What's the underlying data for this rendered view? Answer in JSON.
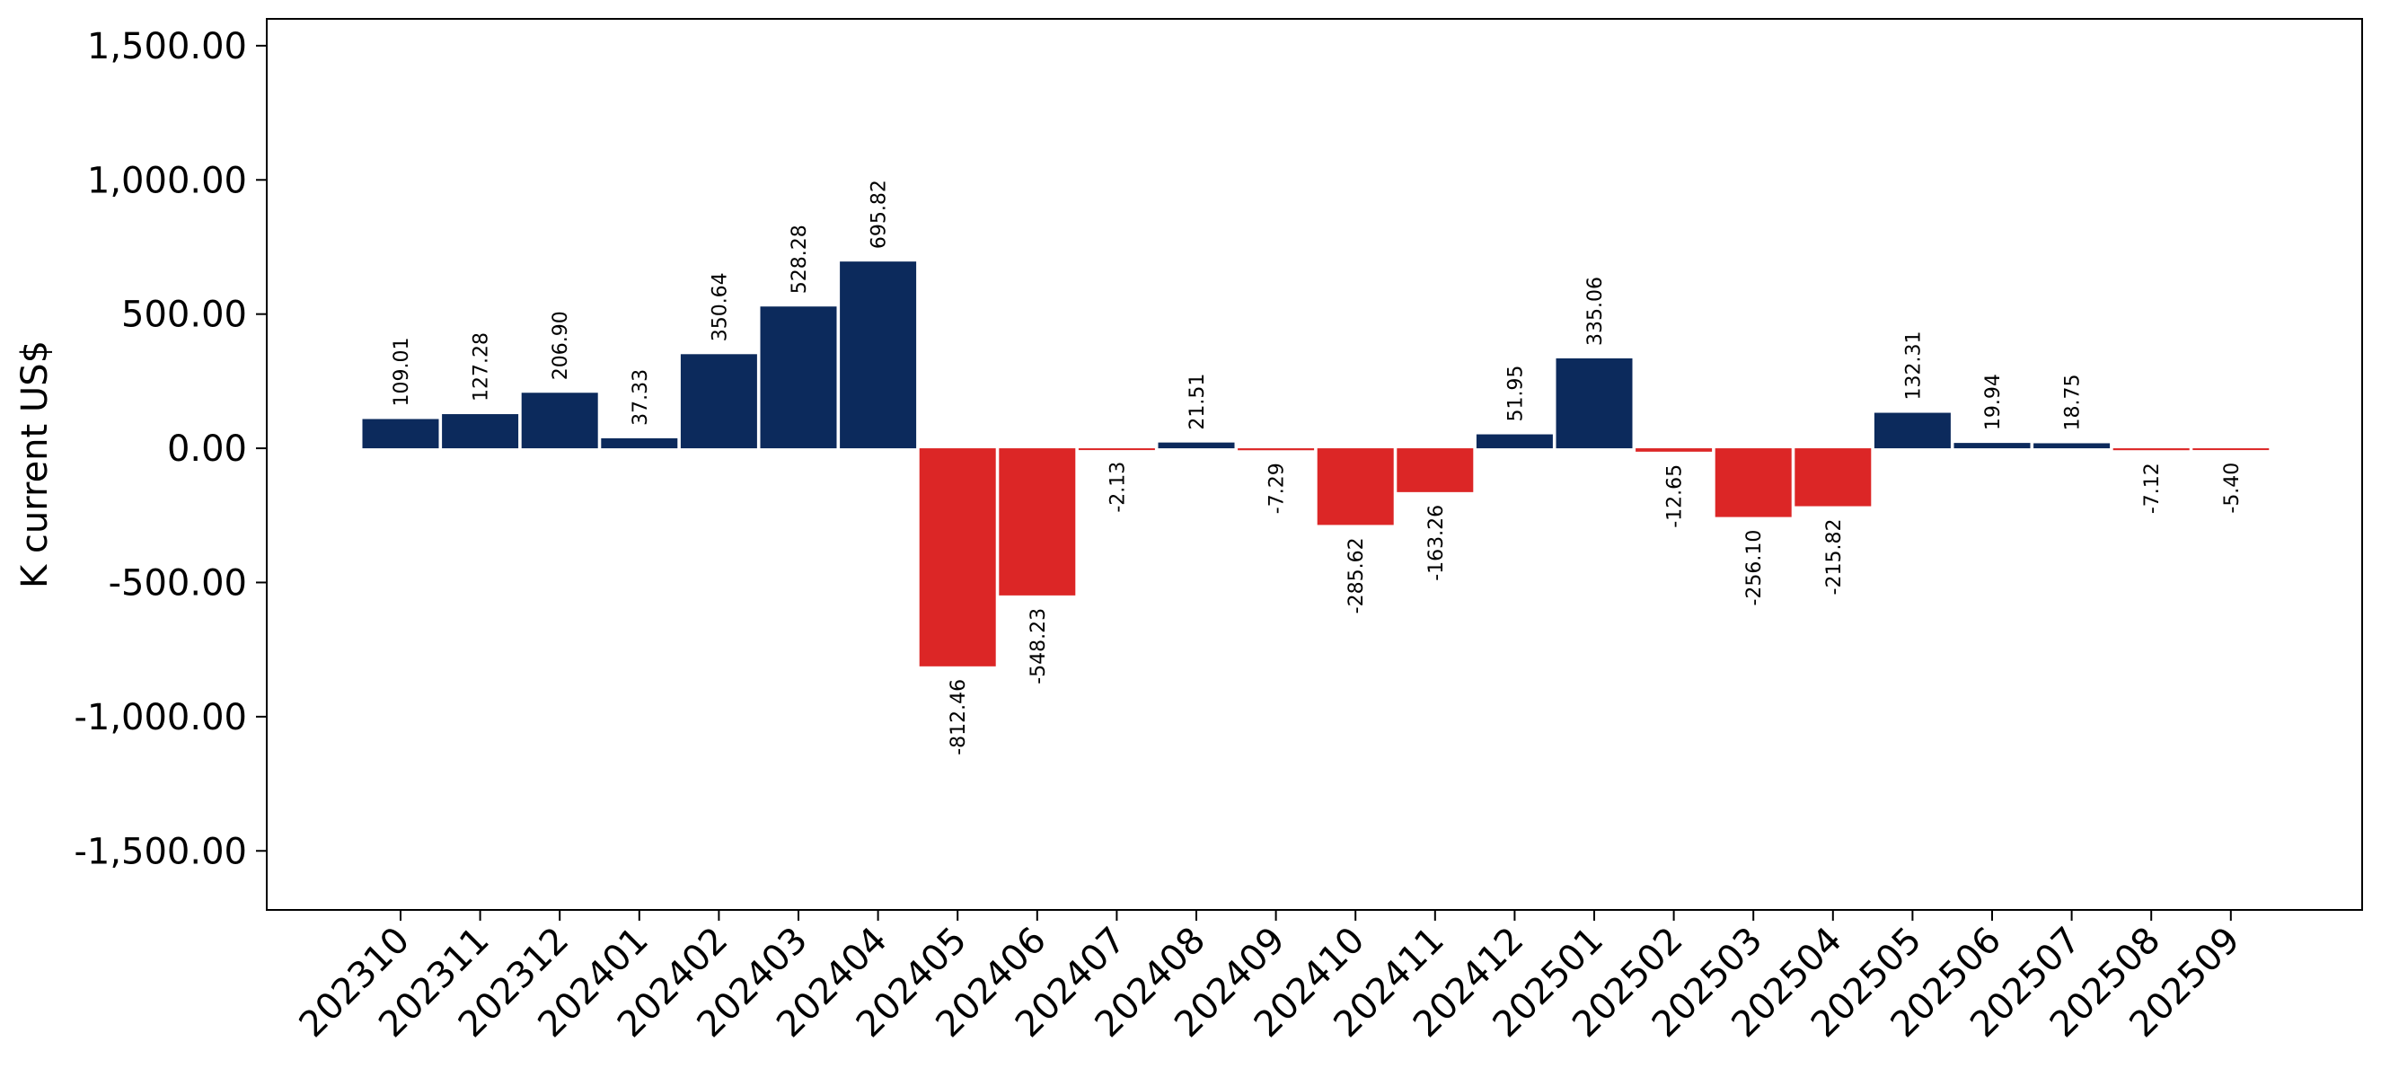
{
  "chart_data": {
    "type": "bar",
    "ylabel": "K current US$",
    "ylim": [
      -1720,
      1600
    ],
    "yticks": [
      1500,
      1000,
      500,
      0,
      -500,
      -1000,
      -1500
    ],
    "ytick_labels": [
      "1,500.00",
      "1,000.00",
      "500.00",
      "0.00",
      "-500.00",
      "-1,000.00",
      "-1,500.00"
    ],
    "categories": [
      "202310",
      "202311",
      "202312",
      "202401",
      "202402",
      "202403",
      "202404",
      "202405",
      "202406",
      "202407",
      "202408",
      "202409",
      "202410",
      "202411",
      "202412",
      "202501",
      "202502",
      "202503",
      "202504",
      "202505",
      "202506",
      "202507",
      "202508",
      "202509"
    ],
    "values": [
      109.01,
      127.28,
      206.9,
      37.33,
      350.64,
      528.28,
      695.82,
      -812.46,
      -548.23,
      -2.13,
      21.51,
      -7.29,
      -285.62,
      -163.26,
      51.95,
      335.06,
      -12.65,
      -256.1,
      -215.82,
      132.31,
      19.94,
      18.75,
      -7.12,
      -5.4
    ],
    "value_labels": [
      "109.01",
      "127.28",
      "206.90",
      "37.33",
      "350.64",
      "528.28",
      "695.82",
      "-812.46",
      "-548.23",
      "-2.13",
      "21.51",
      "-7.29",
      "-285.62",
      "-163.26",
      "51.95",
      "335.06",
      "-12.65",
      "-256.10",
      "-215.82",
      "132.31",
      "19.94",
      "18.75",
      "-7.12",
      "-5.40"
    ],
    "colors": {
      "positive": "#0c2a5c",
      "negative": "#dc2626"
    },
    "grid": false,
    "legend": "none"
  }
}
